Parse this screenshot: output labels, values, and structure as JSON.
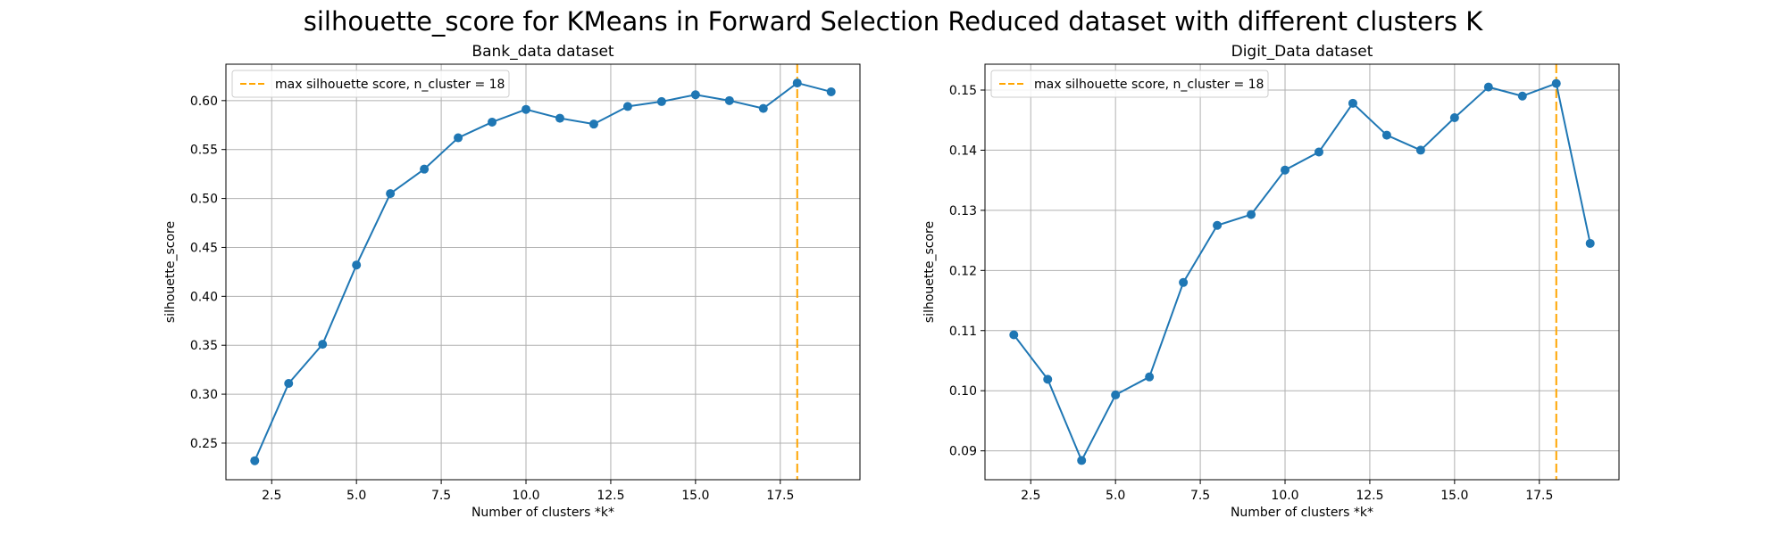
{
  "figure": {
    "suptitle": "silhouette_score for KMeans in Forward Selection Reduced dataset with different clusters K"
  },
  "colors": {
    "series": "#1f77b4",
    "max_line": "#ffa500",
    "grid": "#b0b0b0",
    "legend_border": "#cccccc"
  },
  "chart_data": [
    {
      "type": "line",
      "title": "Bank_data dataset",
      "xlabel": "Number of clusters *k*",
      "ylabel": "silhouette_score",
      "grid": true,
      "legend_placement": "upper-left",
      "xlim": [
        1.15,
        19.85
      ],
      "ylim": [
        0.2126,
        0.6372
      ],
      "xticks": [
        2.5,
        5.0,
        7.5,
        10.0,
        12.5,
        15.0,
        17.5
      ],
      "xtick_labels": [
        "2.5",
        "5.0",
        "7.5",
        "10.0",
        "12.5",
        "15.0",
        "17.5"
      ],
      "yticks": [
        0.25,
        0.3,
        0.35,
        0.4,
        0.45,
        0.5,
        0.55,
        0.6
      ],
      "ytick_labels": [
        "0.25",
        "0.30",
        "0.35",
        "0.40",
        "0.45",
        "0.50",
        "0.55",
        "0.60"
      ],
      "series": [
        {
          "x": [
            2,
            3,
            4,
            5,
            6,
            7,
            8,
            9,
            10,
            11,
            12,
            13,
            14,
            15,
            16,
            17,
            18,
            19
          ],
          "y": [
            0.232,
            0.311,
            0.351,
            0.432,
            0.505,
            0.53,
            0.562,
            0.578,
            0.591,
            0.582,
            0.576,
            0.594,
            0.599,
            0.606,
            0.6,
            0.592,
            0.618,
            0.609
          ]
        }
      ],
      "vline": {
        "x": 18,
        "label": "max silhouette score, n_cluster = 18"
      }
    },
    {
      "type": "line",
      "title": "Digit_Data dataset",
      "xlabel": "Number of clusters *k*",
      "ylabel": "silhouette_score",
      "grid": true,
      "legend_placement": "upper-left",
      "xlim": [
        1.15,
        19.85
      ],
      "ylim": [
        0.0852,
        0.1543
      ],
      "xticks": [
        2.5,
        5.0,
        7.5,
        10.0,
        12.5,
        15.0,
        17.5
      ],
      "xtick_labels": [
        "2.5",
        "5.0",
        "7.5",
        "10.0",
        "12.5",
        "15.0",
        "17.5"
      ],
      "yticks": [
        0.09,
        0.1,
        0.11,
        0.12,
        0.13,
        0.14,
        0.15
      ],
      "ytick_labels": [
        "0.09",
        "0.10",
        "0.11",
        "0.12",
        "0.13",
        "0.14",
        "0.15"
      ],
      "series": [
        {
          "x": [
            2,
            3,
            4,
            5,
            6,
            7,
            8,
            9,
            10,
            11,
            12,
            13,
            14,
            15,
            16,
            17,
            18,
            19
          ],
          "y": [
            0.1093,
            0.1019,
            0.0884,
            0.0993,
            0.1023,
            0.118,
            0.1275,
            0.1293,
            0.1367,
            0.1397,
            0.1478,
            0.1425,
            0.14,
            0.1454,
            0.1505,
            0.149,
            0.1511,
            0.1245
          ]
        }
      ],
      "vline": {
        "x": 18,
        "label": "max silhouette score, n_cluster = 18"
      }
    }
  ]
}
